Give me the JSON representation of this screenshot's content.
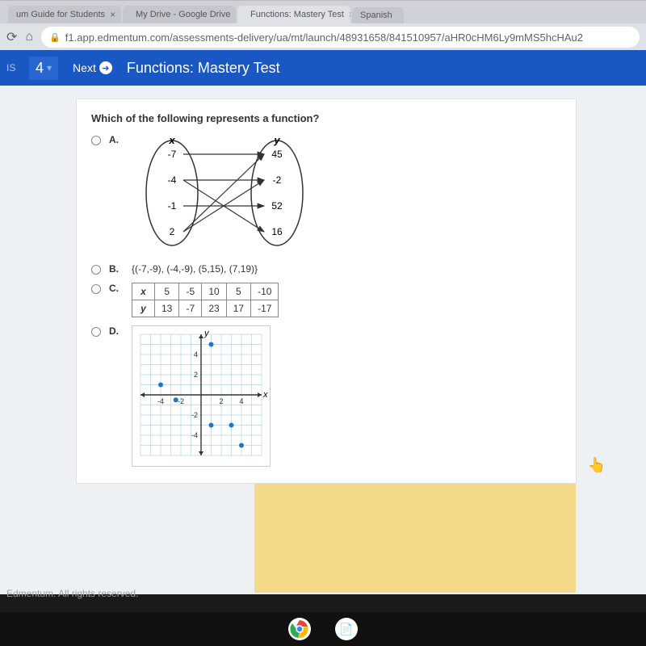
{
  "browser": {
    "tabs": [
      {
        "label": "um Guide for Students",
        "active": false
      },
      {
        "label": "My Drive - Google Drive",
        "active": false
      },
      {
        "label": "Functions: Mastery Test",
        "active": true
      },
      {
        "label": "Spanish",
        "active": false
      }
    ],
    "url": "f1.app.edmentum.com/assessments-delivery/ua/mt/launch/48931658/841510957/aHR0cHM6Ly9mMS5hcHAu2"
  },
  "header": {
    "tools_count": "4",
    "next_label": "Next",
    "title": "Functions: Mastery Test"
  },
  "question": {
    "prompt": "Which of the following represents a function?",
    "options": {
      "A": {
        "label": "A.",
        "x_header": "x",
        "y_header": "y",
        "x_values": [
          "-7",
          "-4",
          "-1",
          "2"
        ],
        "y_values": [
          "45",
          "-2",
          "52",
          "16"
        ],
        "arrows": [
          {
            "from": 0,
            "to": 0
          },
          {
            "from": 1,
            "to": 1
          },
          {
            "from": 1,
            "to": 3
          },
          {
            "from": 2,
            "to": 2
          },
          {
            "from": 3,
            "to": 0
          },
          {
            "from": 3,
            "to": 1
          }
        ]
      },
      "B": {
        "label": "B.",
        "text": "{(-7,-9), (-4,-9), (5,15), (7,19)}"
      },
      "C": {
        "label": "C.",
        "x_label": "x",
        "y_label": "y",
        "x_row": [
          "5",
          "-5",
          "10",
          "5",
          "-10"
        ],
        "y_row": [
          "13",
          "-7",
          "23",
          "17",
          "-17"
        ]
      },
      "D": {
        "label": "D.",
        "x_label": "x",
        "y_label": "y",
        "xlim": [
          -6,
          6
        ],
        "ylim": [
          -6,
          6
        ],
        "tick_step": 2,
        "grid_color": "#b8d4e3",
        "axis_color": "#333333",
        "point_color": "#1976d2",
        "point_radius": 3,
        "points": [
          {
            "x": 1,
            "y": 5
          },
          {
            "x": -4,
            "y": 1
          },
          {
            "x": -2.5,
            "y": -0.5
          },
          {
            "x": 1,
            "y": -3
          },
          {
            "x": 3,
            "y": -3
          },
          {
            "x": 4,
            "y": -5
          }
        ],
        "tick_labels_x": [
          "-4",
          "-2",
          "2",
          "4"
        ],
        "tick_labels_y": [
          "4",
          "2",
          "-2",
          "-4"
        ]
      }
    }
  },
  "footer": "Edmentum. All rights reserved."
}
